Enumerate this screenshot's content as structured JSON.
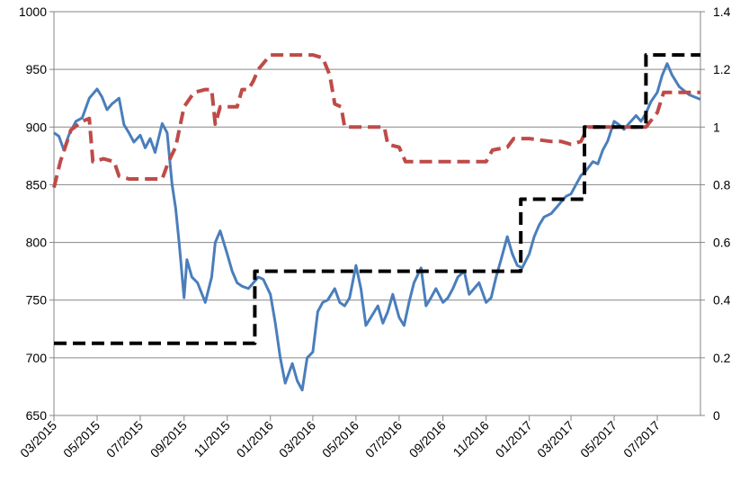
{
  "chart_data": {
    "type": "line",
    "title": "",
    "xlabel": "",
    "ylabel": "",
    "y2label": "",
    "grid": "horizontal major gridlines",
    "legend": "none",
    "x_range": [
      "2015-03-01",
      "2017-08-31"
    ],
    "x_tick_labels": [
      "03/2015",
      "05/2015",
      "07/2015",
      "09/2015",
      "11/2015",
      "01/2016",
      "03/2016",
      "05/2016",
      "07/2016",
      "09/2016",
      "11/2016",
      "01/2017",
      "03/2017",
      "05/2017",
      "07/2017"
    ],
    "x_tick_dates": [
      "2015-03-01",
      "2015-05-01",
      "2015-07-01",
      "2015-09-01",
      "2015-11-01",
      "2016-01-01",
      "2016-03-01",
      "2016-05-01",
      "2016-07-01",
      "2016-09-01",
      "2016-11-01",
      "2017-01-01",
      "2017-03-01",
      "2017-05-01",
      "2017-07-01"
    ],
    "y_left": {
      "range": [
        650,
        1000
      ],
      "ticks": [
        "650",
        "700",
        "750",
        "800",
        "850",
        "900",
        "950",
        "1000"
      ]
    },
    "y_right": {
      "range": [
        0,
        1.4
      ],
      "ticks": [
        "0",
        "0.2",
        "0.4",
        "0.6",
        "0.8",
        "1",
        "1.2",
        "1.4"
      ]
    },
    "series": [
      {
        "axis": "left",
        "color": "#4A7EBB",
        "style": "solid",
        "points": [
          [
            "2015-03-01",
            895
          ],
          [
            "2015-03-08",
            892
          ],
          [
            "2015-03-15",
            880
          ],
          [
            "2015-03-22",
            893
          ],
          [
            "2015-04-01",
            905
          ],
          [
            "2015-04-10",
            908
          ],
          [
            "2015-04-20",
            925
          ],
          [
            "2015-05-01",
            933
          ],
          [
            "2015-05-08",
            926
          ],
          [
            "2015-05-15",
            915
          ],
          [
            "2015-05-22",
            920
          ],
          [
            "2015-06-01",
            925
          ],
          [
            "2015-06-08",
            902
          ],
          [
            "2015-06-15",
            895
          ],
          [
            "2015-06-22",
            887
          ],
          [
            "2015-07-01",
            893
          ],
          [
            "2015-07-08",
            882
          ],
          [
            "2015-07-15",
            890
          ],
          [
            "2015-07-22",
            878
          ],
          [
            "2015-08-01",
            903
          ],
          [
            "2015-08-08",
            895
          ],
          [
            "2015-08-15",
            850
          ],
          [
            "2015-08-20",
            830
          ],
          [
            "2015-08-25",
            800
          ],
          [
            "2015-09-01",
            752
          ],
          [
            "2015-09-05",
            785
          ],
          [
            "2015-09-12",
            770
          ],
          [
            "2015-09-20",
            765
          ],
          [
            "2015-10-01",
            748
          ],
          [
            "2015-10-10",
            770
          ],
          [
            "2015-10-15",
            800
          ],
          [
            "2015-10-22",
            810
          ],
          [
            "2015-11-01",
            790
          ],
          [
            "2015-11-08",
            775
          ],
          [
            "2015-11-15",
            765
          ],
          [
            "2015-11-22",
            762
          ],
          [
            "2015-12-01",
            760
          ],
          [
            "2015-12-08",
            765
          ],
          [
            "2015-12-15",
            770
          ],
          [
            "2015-12-22",
            768
          ],
          [
            "2016-01-01",
            755
          ],
          [
            "2016-01-08",
            730
          ],
          [
            "2016-01-15",
            700
          ],
          [
            "2016-01-22",
            678
          ],
          [
            "2016-02-01",
            695
          ],
          [
            "2016-02-08",
            680
          ],
          [
            "2016-02-15",
            672
          ],
          [
            "2016-02-22",
            700
          ],
          [
            "2016-03-01",
            705
          ],
          [
            "2016-03-08",
            740
          ],
          [
            "2016-03-15",
            748
          ],
          [
            "2016-03-22",
            750
          ],
          [
            "2016-04-01",
            760
          ],
          [
            "2016-04-08",
            748
          ],
          [
            "2016-04-15",
            745
          ],
          [
            "2016-04-22",
            752
          ],
          [
            "2016-05-01",
            780
          ],
          [
            "2016-05-08",
            760
          ],
          [
            "2016-05-15",
            728
          ],
          [
            "2016-05-22",
            735
          ],
          [
            "2016-06-01",
            745
          ],
          [
            "2016-06-08",
            730
          ],
          [
            "2016-06-15",
            740
          ],
          [
            "2016-06-22",
            755
          ],
          [
            "2016-07-01",
            735
          ],
          [
            "2016-07-08",
            728
          ],
          [
            "2016-07-15",
            748
          ],
          [
            "2016-07-22",
            765
          ],
          [
            "2016-08-01",
            778
          ],
          [
            "2016-08-08",
            745
          ],
          [
            "2016-08-15",
            752
          ],
          [
            "2016-08-22",
            760
          ],
          [
            "2016-09-01",
            748
          ],
          [
            "2016-09-08",
            752
          ],
          [
            "2016-09-15",
            760
          ],
          [
            "2016-09-22",
            770
          ],
          [
            "2016-10-01",
            775
          ],
          [
            "2016-10-08",
            755
          ],
          [
            "2016-10-15",
            760
          ],
          [
            "2016-10-22",
            765
          ],
          [
            "2016-11-01",
            748
          ],
          [
            "2016-11-08",
            752
          ],
          [
            "2016-11-15",
            770
          ],
          [
            "2016-11-22",
            785
          ],
          [
            "2016-12-01",
            805
          ],
          [
            "2016-12-08",
            790
          ],
          [
            "2016-12-15",
            780
          ],
          [
            "2016-12-22",
            778
          ],
          [
            "2017-01-01",
            790
          ],
          [
            "2017-01-08",
            805
          ],
          [
            "2017-01-15",
            815
          ],
          [
            "2017-01-22",
            822
          ],
          [
            "2017-02-01",
            825
          ],
          [
            "2017-02-08",
            830
          ],
          [
            "2017-02-15",
            835
          ],
          [
            "2017-02-22",
            840
          ],
          [
            "2017-03-01",
            842
          ],
          [
            "2017-03-08",
            850
          ],
          [
            "2017-03-15",
            858
          ],
          [
            "2017-03-22",
            862
          ],
          [
            "2017-04-01",
            870
          ],
          [
            "2017-04-08",
            868
          ],
          [
            "2017-04-15",
            880
          ],
          [
            "2017-04-22",
            888
          ],
          [
            "2017-05-01",
            905
          ],
          [
            "2017-05-08",
            902
          ],
          [
            "2017-05-15",
            898
          ],
          [
            "2017-05-22",
            903
          ],
          [
            "2017-06-01",
            910
          ],
          [
            "2017-06-08",
            905
          ],
          [
            "2017-06-15",
            912
          ],
          [
            "2017-06-22",
            922
          ],
          [
            "2017-07-01",
            930
          ],
          [
            "2017-07-08",
            945
          ],
          [
            "2017-07-15",
            955
          ],
          [
            "2017-07-22",
            945
          ],
          [
            "2017-08-01",
            935
          ],
          [
            "2017-08-15",
            928
          ],
          [
            "2017-08-31",
            924
          ]
        ]
      },
      {
        "axis": "right",
        "color": "#BE4B48",
        "style": "dashed",
        "points": [
          [
            "2015-03-01",
            0.79
          ],
          [
            "2015-03-10",
            0.88
          ],
          [
            "2015-03-25",
            0.99
          ],
          [
            "2015-04-10",
            1.02
          ],
          [
            "2015-04-20",
            1.03
          ],
          [
            "2015-04-25",
            0.88
          ],
          [
            "2015-05-10",
            0.89
          ],
          [
            "2015-05-25",
            0.88
          ],
          [
            "2015-06-01",
            0.83
          ],
          [
            "2015-06-15",
            0.82
          ],
          [
            "2015-07-01",
            0.82
          ],
          [
            "2015-07-15",
            0.82
          ],
          [
            "2015-08-01",
            0.82
          ],
          [
            "2015-08-10",
            0.88
          ],
          [
            "2015-08-20",
            0.93
          ],
          [
            "2015-09-01",
            1.07
          ],
          [
            "2015-09-15",
            1.12
          ],
          [
            "2015-10-01",
            1.13
          ],
          [
            "2015-10-10",
            1.13
          ],
          [
            "2015-10-15",
            1.01
          ],
          [
            "2015-10-22",
            1.07
          ],
          [
            "2015-11-01",
            1.07
          ],
          [
            "2015-11-15",
            1.07
          ],
          [
            "2015-11-22",
            1.13
          ],
          [
            "2015-12-01",
            1.13
          ],
          [
            "2015-12-08",
            1.16
          ],
          [
            "2015-12-15",
            1.2
          ],
          [
            "2016-01-01",
            1.25
          ],
          [
            "2016-01-15",
            1.25
          ],
          [
            "2016-02-01",
            1.25
          ],
          [
            "2016-02-15",
            1.25
          ],
          [
            "2016-03-01",
            1.25
          ],
          [
            "2016-03-15",
            1.24
          ],
          [
            "2016-03-25",
            1.18
          ],
          [
            "2016-04-01",
            1.08
          ],
          [
            "2016-04-10",
            1.07
          ],
          [
            "2016-04-15",
            1.0
          ],
          [
            "2016-05-01",
            1.0
          ],
          [
            "2016-05-15",
            1.0
          ],
          [
            "2016-06-01",
            1.0
          ],
          [
            "2016-06-10",
            1.0
          ],
          [
            "2016-06-15",
            0.94
          ],
          [
            "2016-07-01",
            0.93
          ],
          [
            "2016-07-10",
            0.88
          ],
          [
            "2016-08-01",
            0.88
          ],
          [
            "2016-09-01",
            0.88
          ],
          [
            "2016-10-01",
            0.88
          ],
          [
            "2016-11-01",
            0.88
          ],
          [
            "2016-11-10",
            0.92
          ],
          [
            "2016-12-01",
            0.93
          ],
          [
            "2016-12-10",
            0.96
          ],
          [
            "2017-01-01",
            0.96
          ],
          [
            "2017-02-01",
            0.95
          ],
          [
            "2017-02-15",
            0.95
          ],
          [
            "2017-03-01",
            0.94
          ],
          [
            "2017-03-15",
            0.95
          ],
          [
            "2017-03-25",
            1.0
          ],
          [
            "2017-04-15",
            1.0
          ],
          [
            "2017-05-15",
            1.0
          ],
          [
            "2017-06-15",
            1.0
          ],
          [
            "2017-07-01",
            1.05
          ],
          [
            "2017-07-10",
            1.12
          ],
          [
            "2017-08-01",
            1.12
          ],
          [
            "2017-08-31",
            1.12
          ]
        ]
      },
      {
        "axis": "right",
        "color": "#000000",
        "style": "dashed-step",
        "points": [
          [
            "2015-03-01",
            0.25
          ],
          [
            "2015-12-10",
            0.25
          ],
          [
            "2015-12-10",
            0.5
          ],
          [
            "2016-12-20",
            0.5
          ],
          [
            "2016-12-20",
            0.75
          ],
          [
            "2017-03-20",
            0.75
          ],
          [
            "2017-03-20",
            1.0
          ],
          [
            "2017-06-15",
            1.0
          ],
          [
            "2017-06-15",
            1.25
          ],
          [
            "2017-08-31",
            1.25
          ]
        ]
      }
    ]
  }
}
